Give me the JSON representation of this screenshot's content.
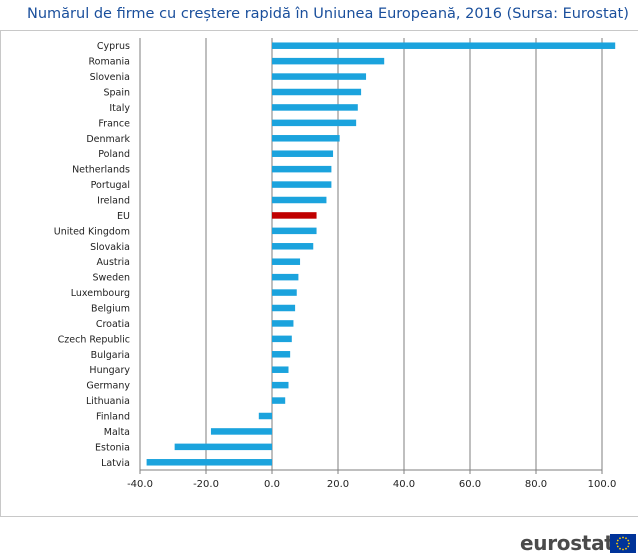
{
  "title": "Numărul de firme cu creștere rapidă în Uniunea Europeană, 2016 (Sursa: Eurostat)",
  "brand": "eurostat",
  "colors": {
    "bar": "#1ba3dd",
    "highlight": "#c00000",
    "grid": "#7f7f7f",
    "title": "#1a4f9c"
  },
  "chart_data": {
    "type": "bar",
    "orientation": "horizontal",
    "title": "Numărul de firme cu creștere rapidă în Uniunea Europeană, 2016 (Sursa: Eurostat)",
    "xlabel": "",
    "ylabel": "",
    "xlim": [
      -40,
      100
    ],
    "xticks": [
      -40,
      -20,
      0,
      20,
      40,
      60,
      80,
      100
    ],
    "tick_labels": [
      "-40.0",
      "-20.0",
      "0.0",
      "20.0",
      "40.0",
      "60.0",
      "80.0",
      "100.0"
    ],
    "grid": true,
    "highlight_category": "EU",
    "categories": [
      "Cyprus",
      "Romania",
      "Slovenia",
      "Spain",
      "Italy",
      "France",
      "Denmark",
      "Poland",
      "Netherlands",
      "Portugal",
      "Ireland",
      "EU",
      "United Kingdom",
      "Slovakia",
      "Austria",
      "Sweden",
      "Luxembourg",
      "Belgium",
      "Croatia",
      "Czech Republic",
      "Bulgaria",
      "Hungary",
      "Germany",
      "Lithuania",
      "Finland",
      "Malta",
      "Estonia",
      "Latvia"
    ],
    "values": [
      104,
      34,
      28.5,
      27,
      26,
      25.5,
      20.5,
      18.5,
      18,
      18,
      16.5,
      13.5,
      13.5,
      12.5,
      8.5,
      8,
      7.5,
      7,
      6.5,
      6,
      5.5,
      5,
      5,
      4,
      -4,
      -18.5,
      -29.5,
      -38
    ]
  }
}
